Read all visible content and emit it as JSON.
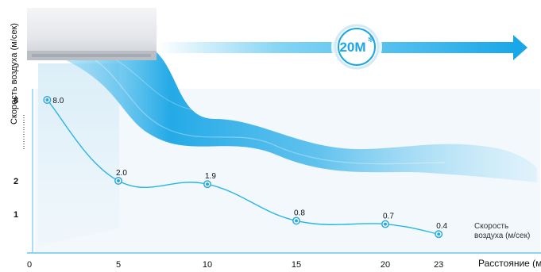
{
  "badge": {
    "text": "20M",
    "icon": "fan-icon"
  },
  "colors": {
    "accent": "#1aa7e8",
    "curve": "#27b5e6",
    "marker": "#2aa9dd",
    "text": "#111111"
  },
  "chart_data": {
    "type": "line",
    "ylabel": "Скорость воздуха (м/сек)",
    "xlabel": "Расстояние (м",
    "x_ticks": [
      "0",
      "5",
      "10",
      "15",
      "20",
      "23"
    ],
    "y_ticks": [
      "1",
      "2",
      "8"
    ],
    "x": [
      1,
      5,
      10,
      15,
      20,
      23
    ],
    "values": [
      8.0,
      2.0,
      1.9,
      0.8,
      0.7,
      0.4
    ],
    "point_labels": [
      "8.0",
      "2.0",
      "1.9",
      "0.8",
      "0.7",
      "0.4"
    ],
    "legend": {
      "line1": "Скорость",
      "line2": "воздуха (м/сек)"
    },
    "grid": false
  }
}
